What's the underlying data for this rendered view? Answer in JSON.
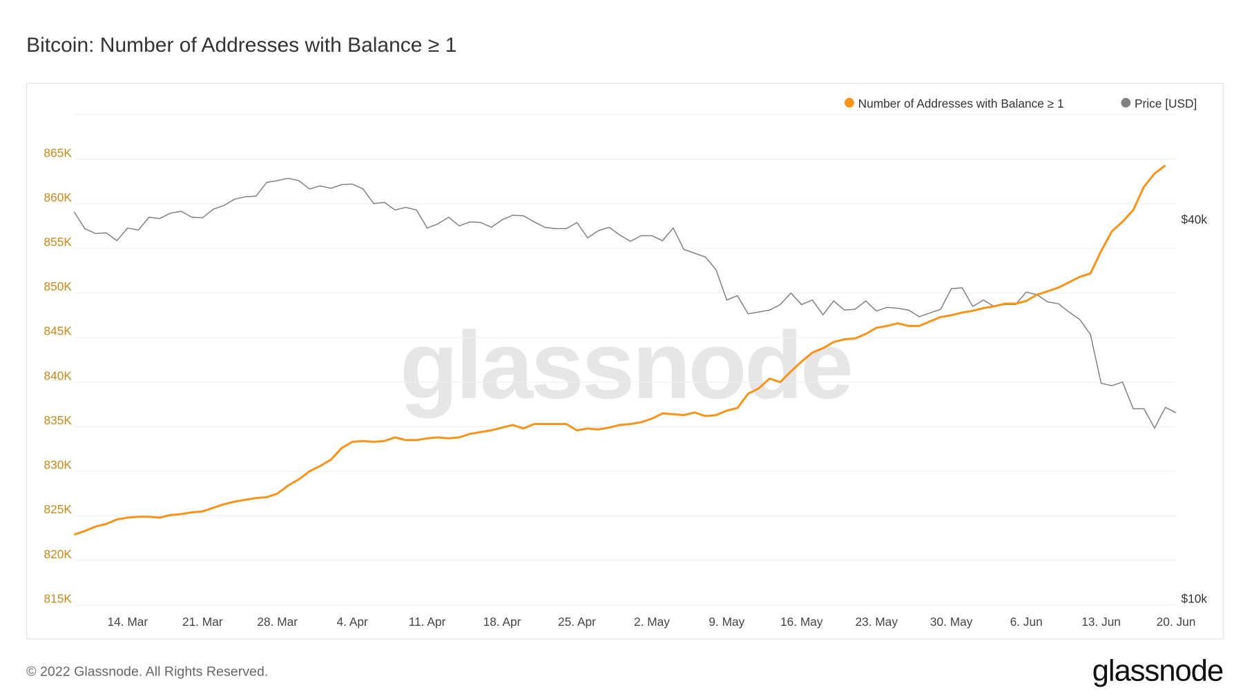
{
  "title": "Bitcoin: Number of Addresses with Balance ≥ 1",
  "footer": "© 2022 Glassnode. All Rights Reserved.",
  "logo": "glassnode",
  "watermark": "glassnode",
  "chart_data": {
    "type": "line",
    "title": "Bitcoin: Number of Addresses with Balance ≥ 1",
    "legend_position": "top-right",
    "grid": true,
    "x_tick_labels": [
      "14. Mar",
      "21. Mar",
      "28. Mar",
      "4. Apr",
      "11. Apr",
      "18. Apr",
      "25. Apr",
      "2. May",
      "9. May",
      "16. May",
      "23. May",
      "30. May",
      "6. Jun",
      "13. Jun",
      "20. Jun"
    ],
    "x_tick_dates": [
      "2022-03-14",
      "2022-03-21",
      "2022-03-28",
      "2022-04-04",
      "2022-04-11",
      "2022-04-18",
      "2022-04-25",
      "2022-05-02",
      "2022-05-09",
      "2022-05-16",
      "2022-05-23",
      "2022-05-30",
      "2022-06-06",
      "2022-06-13",
      "2022-06-20"
    ],
    "y_left": {
      "tick_labels": [
        "815K",
        "820K",
        "825K",
        "830K",
        "835K",
        "840K",
        "845K",
        "850K",
        "855K",
        "860K",
        "865K"
      ],
      "ticks": [
        815,
        820,
        825,
        830,
        835,
        840,
        845,
        850,
        855,
        860,
        865
      ],
      "range": [
        815,
        870
      ],
      "unit": "K"
    },
    "y_right": {
      "scale": "log",
      "tick_labels": [
        "$10k",
        "$40k"
      ],
      "ticks": [
        10,
        40
      ],
      "range": [
        10,
        60
      ],
      "unit": "k USD"
    },
    "x": [
      "2022-03-09",
      "2022-03-10",
      "2022-03-11",
      "2022-03-12",
      "2022-03-13",
      "2022-03-14",
      "2022-03-15",
      "2022-03-16",
      "2022-03-17",
      "2022-03-18",
      "2022-03-19",
      "2022-03-20",
      "2022-03-21",
      "2022-03-22",
      "2022-03-23",
      "2022-03-24",
      "2022-03-25",
      "2022-03-26",
      "2022-03-27",
      "2022-03-28",
      "2022-03-29",
      "2022-03-30",
      "2022-03-31",
      "2022-04-01",
      "2022-04-02",
      "2022-04-03",
      "2022-04-04",
      "2022-04-05",
      "2022-04-06",
      "2022-04-07",
      "2022-04-08",
      "2022-04-09",
      "2022-04-10",
      "2022-04-11",
      "2022-04-12",
      "2022-04-13",
      "2022-04-14",
      "2022-04-15",
      "2022-04-16",
      "2022-04-17",
      "2022-04-18",
      "2022-04-19",
      "2022-04-20",
      "2022-04-21",
      "2022-04-22",
      "2022-04-23",
      "2022-04-24",
      "2022-04-25",
      "2022-04-26",
      "2022-04-27",
      "2022-04-28",
      "2022-04-29",
      "2022-04-30",
      "2022-05-01",
      "2022-05-02",
      "2022-05-03",
      "2022-05-04",
      "2022-05-05",
      "2022-05-06",
      "2022-05-07",
      "2022-05-08",
      "2022-05-09",
      "2022-05-10",
      "2022-05-11",
      "2022-05-12",
      "2022-05-13",
      "2022-05-14",
      "2022-05-15",
      "2022-05-16",
      "2022-05-17",
      "2022-05-18",
      "2022-05-19",
      "2022-05-20",
      "2022-05-21",
      "2022-05-22",
      "2022-05-23",
      "2022-05-24",
      "2022-05-25",
      "2022-05-26",
      "2022-05-27",
      "2022-05-28",
      "2022-05-29",
      "2022-05-30",
      "2022-05-31",
      "2022-06-01",
      "2022-06-02",
      "2022-06-03",
      "2022-06-04",
      "2022-06-05",
      "2022-06-06",
      "2022-06-07",
      "2022-06-08",
      "2022-06-09",
      "2022-06-10",
      "2022-06-11",
      "2022-06-12",
      "2022-06-13",
      "2022-06-14",
      "2022-06-15",
      "2022-06-16",
      "2022-06-17",
      "2022-06-18",
      "2022-06-19",
      "2022-06-20"
    ],
    "series": [
      {
        "name": "Number of Addresses with Balance ≥ 1",
        "axis": "left",
        "color": "#f7931a",
        "values": [
          822.9,
          823.3,
          823.8,
          824.1,
          824.6,
          824.8,
          824.9,
          824.9,
          824.8,
          825.1,
          825.2,
          825.4,
          825.5,
          825.9,
          826.3,
          826.6,
          826.8,
          827.0,
          827.1,
          827.5,
          828.4,
          829.1,
          830.0,
          830.6,
          831.3,
          832.6,
          833.3,
          833.4,
          833.3,
          833.4,
          833.8,
          833.5,
          833.5,
          833.7,
          833.8,
          833.7,
          833.8,
          834.2,
          834.4,
          834.6,
          834.9,
          835.2,
          834.8,
          835.3,
          835.3,
          835.3,
          835.3,
          834.6,
          834.8,
          834.7,
          834.9,
          835.2,
          835.3,
          835.5,
          835.9,
          836.5,
          836.4,
          836.3,
          836.6,
          836.2,
          836.3,
          836.8,
          837.1,
          838.7,
          839.3,
          840.4,
          840.0,
          841.2,
          842.3,
          843.3,
          843.8,
          844.5,
          844.8,
          844.9,
          845.4,
          846.1,
          846.3,
          846.6,
          846.3,
          846.3,
          846.8,
          847.3,
          847.5,
          847.8,
          848.0,
          848.3,
          848.5,
          848.8,
          848.8,
          849.1,
          849.8,
          850.2,
          850.6,
          851.2,
          851.8,
          852.2,
          854.7,
          856.9,
          858.0,
          859.3,
          861.9,
          863.4,
          864.3,
          null
        ]
      },
      {
        "name": "Price [USD]",
        "axis": "right",
        "color": "#808080",
        "values": [
          42.1,
          39.6,
          38.9,
          39.0,
          37.9,
          39.7,
          39.4,
          41.3,
          41.1,
          41.9,
          42.2,
          41.3,
          41.2,
          42.5,
          43.1,
          44.1,
          44.5,
          44.6,
          46.9,
          47.2,
          47.6,
          47.2,
          45.8,
          46.3,
          45.9,
          46.5,
          46.6,
          45.8,
          43.4,
          43.6,
          42.4,
          42.8,
          42.4,
          39.7,
          40.3,
          41.3,
          40.0,
          40.6,
          40.5,
          39.8,
          40.9,
          41.6,
          41.5,
          40.6,
          39.8,
          39.6,
          39.6,
          40.5,
          38.3,
          39.3,
          39.8,
          38.7,
          37.8,
          38.6,
          38.6,
          37.9,
          39.7,
          36.7,
          36.2,
          35.7,
          34.1,
          30.5,
          31.0,
          29.0,
          29.2,
          29.4,
          30.0,
          31.3,
          30.0,
          30.5,
          28.9,
          30.4,
          29.4,
          29.5,
          30.4,
          29.3,
          29.7,
          29.6,
          29.4,
          28.7,
          29.1,
          29.5,
          31.8,
          31.9,
          29.8,
          30.5,
          29.8,
          30.0,
          30.0,
          31.4,
          31.1,
          30.3,
          30.1,
          29.2,
          28.4,
          26.9,
          22.5,
          22.3,
          22.6,
          20.5,
          20.5,
          19.1,
          20.6,
          20.2
        ]
      }
    ]
  }
}
